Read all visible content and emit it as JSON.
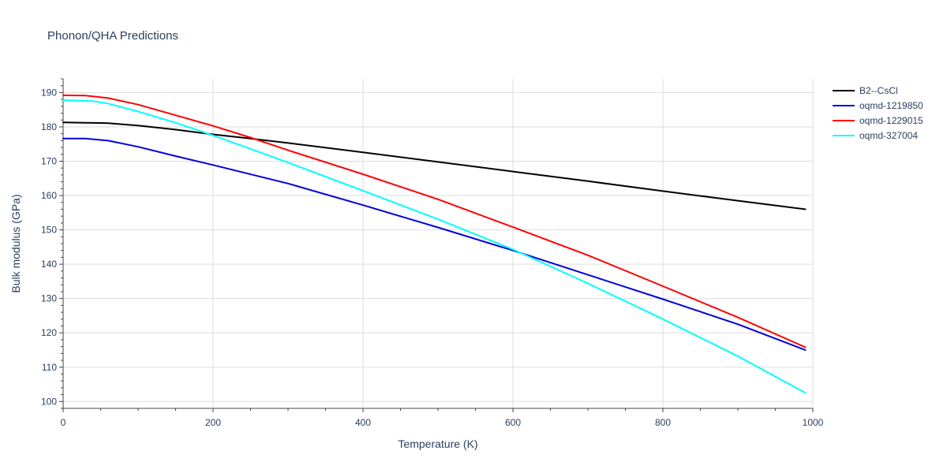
{
  "chart_data": {
    "type": "line",
    "title": "Phonon/QHA Predictions",
    "xlabel": "Temperature (K)",
    "ylabel": "Bulk modulus (GPa)",
    "xlim": [
      0,
      1000
    ],
    "ylim": [
      98,
      194
    ],
    "x_ticks": [
      0,
      200,
      400,
      600,
      800,
      1000
    ],
    "y_ticks": [
      100,
      110,
      120,
      130,
      140,
      150,
      160,
      170,
      180,
      190
    ],
    "x_minor_ticks": [
      50,
      100,
      150,
      250,
      300,
      350,
      450,
      500,
      550,
      650,
      700,
      750,
      850,
      900,
      950
    ],
    "y_minor_ticks": [
      98,
      102,
      104,
      106,
      108,
      112,
      114,
      116,
      118,
      122,
      124,
      126,
      128,
      132,
      134,
      136,
      138,
      142,
      144,
      146,
      148,
      152,
      154,
      156,
      158,
      162,
      164,
      166,
      168,
      172,
      174,
      176,
      178,
      182,
      184,
      186,
      188,
      192,
      194
    ],
    "grid": true,
    "legend_position": "top-right",
    "series": [
      {
        "name": "B2--CsCl",
        "color": "#000000",
        "x": [
          0,
          30,
          60,
          100,
          150,
          200,
          250,
          300,
          400,
          500,
          600,
          700,
          800,
          900,
          990
        ],
        "y": [
          181.3,
          181.2,
          181.1,
          180.4,
          179.2,
          177.8,
          176.6,
          175.3,
          172.6,
          169.8,
          167.0,
          164.2,
          161.3,
          158.5,
          156.0
        ]
      },
      {
        "name": "oqmd-1219850",
        "color": "#0000dd",
        "x": [
          0,
          30,
          60,
          100,
          150,
          200,
          300,
          400,
          500,
          600,
          700,
          800,
          900,
          990
        ],
        "y": [
          176.6,
          176.6,
          176.0,
          174.2,
          171.5,
          168.9,
          163.5,
          157.2,
          150.7,
          144.0,
          136.9,
          129.8,
          122.5,
          115.0
        ]
      },
      {
        "name": "oqmd-1229015",
        "color": "#ff0000",
        "x": [
          0,
          30,
          60,
          100,
          150,
          200,
          250,
          300,
          400,
          500,
          600,
          700,
          800,
          900,
          990
        ],
        "y": [
          189.2,
          189.1,
          188.4,
          186.5,
          183.4,
          180.3,
          176.9,
          173.2,
          166.2,
          158.9,
          150.8,
          142.6,
          133.6,
          124.5,
          115.8
        ]
      },
      {
        "name": "oqmd-327004",
        "color": "#00ffff",
        "x": [
          0,
          40,
          60,
          100,
          150,
          200,
          250,
          300,
          400,
          500,
          600,
          700,
          800,
          900,
          990
        ],
        "y": [
          187.8,
          187.5,
          186.8,
          184.5,
          181.2,
          177.5,
          173.6,
          169.6,
          161.4,
          153.1,
          144.3,
          134.4,
          124.0,
          113.2,
          102.5
        ]
      }
    ]
  }
}
